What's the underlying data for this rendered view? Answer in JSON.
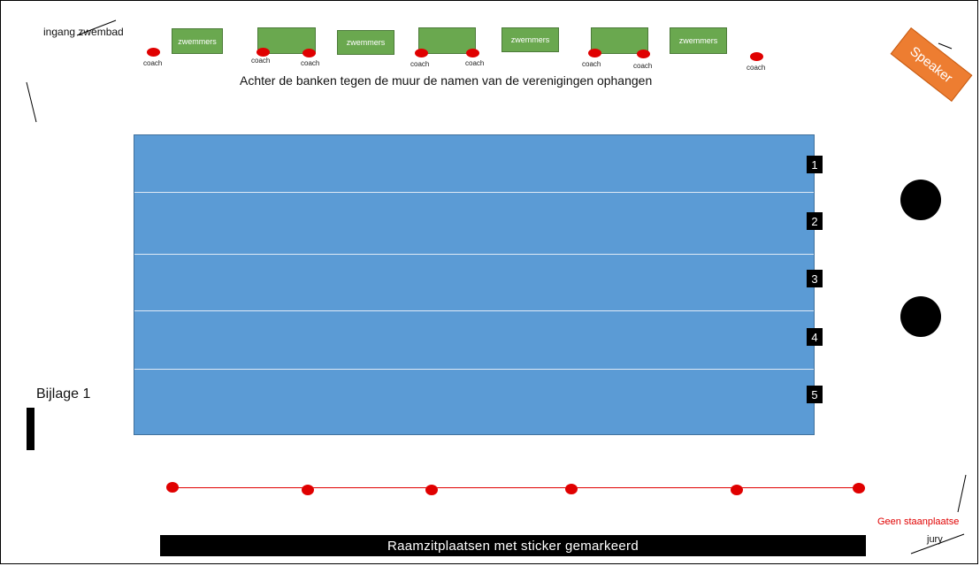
{
  "entrance_label": "ingang zwembad",
  "benches": [
    {
      "label": "zwemmers"
    },
    {
      "label": ""
    },
    {
      "label": "zwemmers"
    },
    {
      "label": ""
    },
    {
      "label": "zwemmers"
    },
    {
      "label": ""
    },
    {
      "label": "zwemmers"
    }
  ],
  "coach_label": "coach",
  "wall_note": "Achter de banken tegen de muur de namen van de verenigingen ophangen",
  "speaker_label": "Speaker",
  "lanes": [
    "1",
    "2",
    "3",
    "4",
    "5"
  ],
  "attachment_label": "Bijlage 1",
  "window_seats_label": "Raamzitplaatsen met sticker gemarkeerd",
  "no_standing_label": "Geen staanplaatse",
  "jury_label": "jury",
  "colors": {
    "pool": "#5b9bd5",
    "bench": "#6aa84f",
    "coach_marker": "#e00000",
    "speaker": "#ed7d31"
  }
}
